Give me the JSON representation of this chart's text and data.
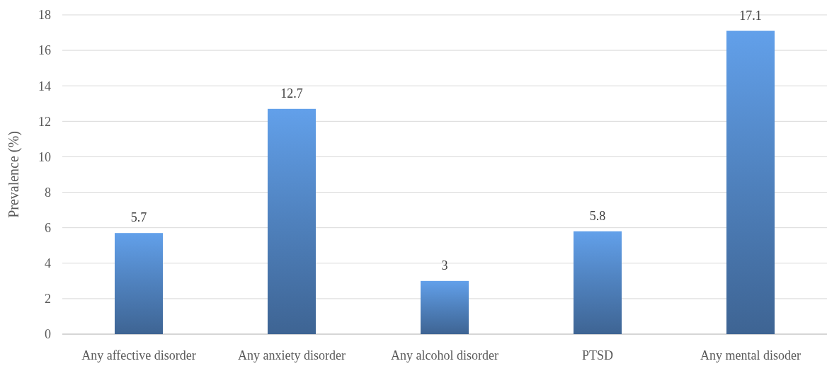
{
  "chart_data": {
    "type": "bar",
    "ylabel": "Prevalence (%)",
    "categories": [
      "Any affective disorder",
      "Any anxiety disorder",
      "Any alcohol disorder",
      "PTSD",
      "Any mental disoder"
    ],
    "values": [
      5.7,
      12.7,
      3,
      5.8,
      17.1
    ],
    "color": "#4f81bd",
    "ylim": [
      0,
      18
    ],
    "yticks": [
      0,
      2,
      4,
      6,
      8,
      10,
      12,
      14,
      16,
      18
    ],
    "grid": "y",
    "data_labels": true
  }
}
